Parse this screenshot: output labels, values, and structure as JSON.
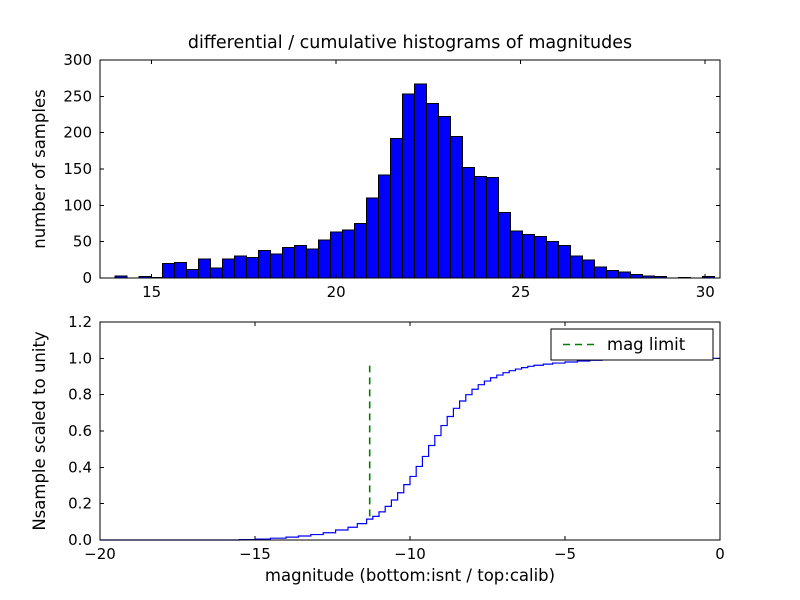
{
  "figure": {
    "background": "#ffffff",
    "accent_blue": "#0000ff",
    "accent_green": "#008000"
  },
  "chart_data": [
    {
      "type": "bar",
      "title": "differential / cumulative histograms of magnitudes",
      "xlabel": "",
      "ylabel": "number of samples",
      "xlim": [
        13.6,
        30.4
      ],
      "ylim": [
        0,
        300
      ],
      "xticks": [
        15,
        20,
        25,
        30
      ],
      "xtick_labels": [
        "15",
        "20",
        "25",
        "30"
      ],
      "yticks": [
        0,
        50,
        100,
        150,
        200,
        250,
        300
      ],
      "ytick_labels": [
        "0",
        "50",
        "100",
        "150",
        "200",
        "250",
        "300"
      ],
      "grid": false,
      "bar_color": "#0000ff",
      "bar_edge_color": "#000000",
      "bins": {
        "start": 14.0,
        "width": 0.325
      },
      "values": [
        3,
        0,
        2,
        1,
        20,
        21,
        12,
        26,
        14,
        26,
        30,
        28,
        38,
        33,
        42,
        45,
        40,
        52,
        63,
        66,
        75,
        110,
        142,
        192,
        253,
        267,
        240,
        222,
        195,
        152,
        140,
        138,
        90,
        65,
        60,
        57,
        50,
        45,
        30,
        25,
        15,
        10,
        8,
        5,
        3,
        2,
        0,
        1,
        0,
        2
      ]
    },
    {
      "type": "line",
      "style": "step",
      "title": "",
      "xlabel": "magnitude (bottom:isnt / top:calib)",
      "ylabel": "Nsample scaled to unity",
      "xlim": [
        -20,
        0
      ],
      "ylim": [
        0,
        1.2
      ],
      "xticks": [
        -20,
        -15,
        -10,
        -5,
        0
      ],
      "xtick_labels": [
        "−20",
        "−15",
        "−10",
        "−5",
        "0"
      ],
      "yticks": [
        0,
        0.2,
        0.4,
        0.6,
        0.8,
        1.0,
        1.2
      ],
      "ytick_labels": [
        "0.0",
        "0.2",
        "0.4",
        "0.6",
        "0.8",
        "1.0",
        "1.2"
      ],
      "grid": false,
      "line_color": "#0000ff",
      "x": [
        -20,
        -15.5,
        -15,
        -14.5,
        -14,
        -13.6,
        -13.2,
        -12.8,
        -12.4,
        -12.0,
        -11.7,
        -11.4,
        -11.2,
        -11.0,
        -10.8,
        -10.6,
        -10.4,
        -10.2,
        -10.0,
        -9.8,
        -9.6,
        -9.4,
        -9.2,
        -9.0,
        -8.8,
        -8.6,
        -8.4,
        -8.2,
        -8.0,
        -7.8,
        -7.6,
        -7.4,
        -7.2,
        -7.0,
        -6.8,
        -6.6,
        -6.4,
        -6.2,
        -6.0,
        -5.7,
        -5.4,
        -5.0,
        -4.6,
        -4.2,
        -3.8,
        -3.2,
        -2.6,
        -2.0,
        -1.0,
        0
      ],
      "y": [
        0,
        0.002,
        0.005,
        0.01,
        0.016,
        0.022,
        0.03,
        0.04,
        0.055,
        0.07,
        0.09,
        0.115,
        0.13,
        0.155,
        0.185,
        0.22,
        0.26,
        0.305,
        0.35,
        0.405,
        0.46,
        0.52,
        0.575,
        0.63,
        0.68,
        0.725,
        0.765,
        0.8,
        0.83,
        0.855,
        0.875,
        0.893,
        0.908,
        0.921,
        0.932,
        0.941,
        0.949,
        0.956,
        0.962,
        0.968,
        0.974,
        0.98,
        0.985,
        0.989,
        0.992,
        0.995,
        0.997,
        0.999,
        1.0,
        1.0
      ],
      "vline": {
        "x": -11.3,
        "y_start": 0.13,
        "y_end": 0.96,
        "color": "#008000",
        "style": "dashed",
        "label": "mag limit"
      },
      "legend": {
        "position": "upper right",
        "entries": [
          {
            "label": "mag limit",
            "color": "#008000",
            "style": "dashed"
          }
        ]
      }
    }
  ]
}
